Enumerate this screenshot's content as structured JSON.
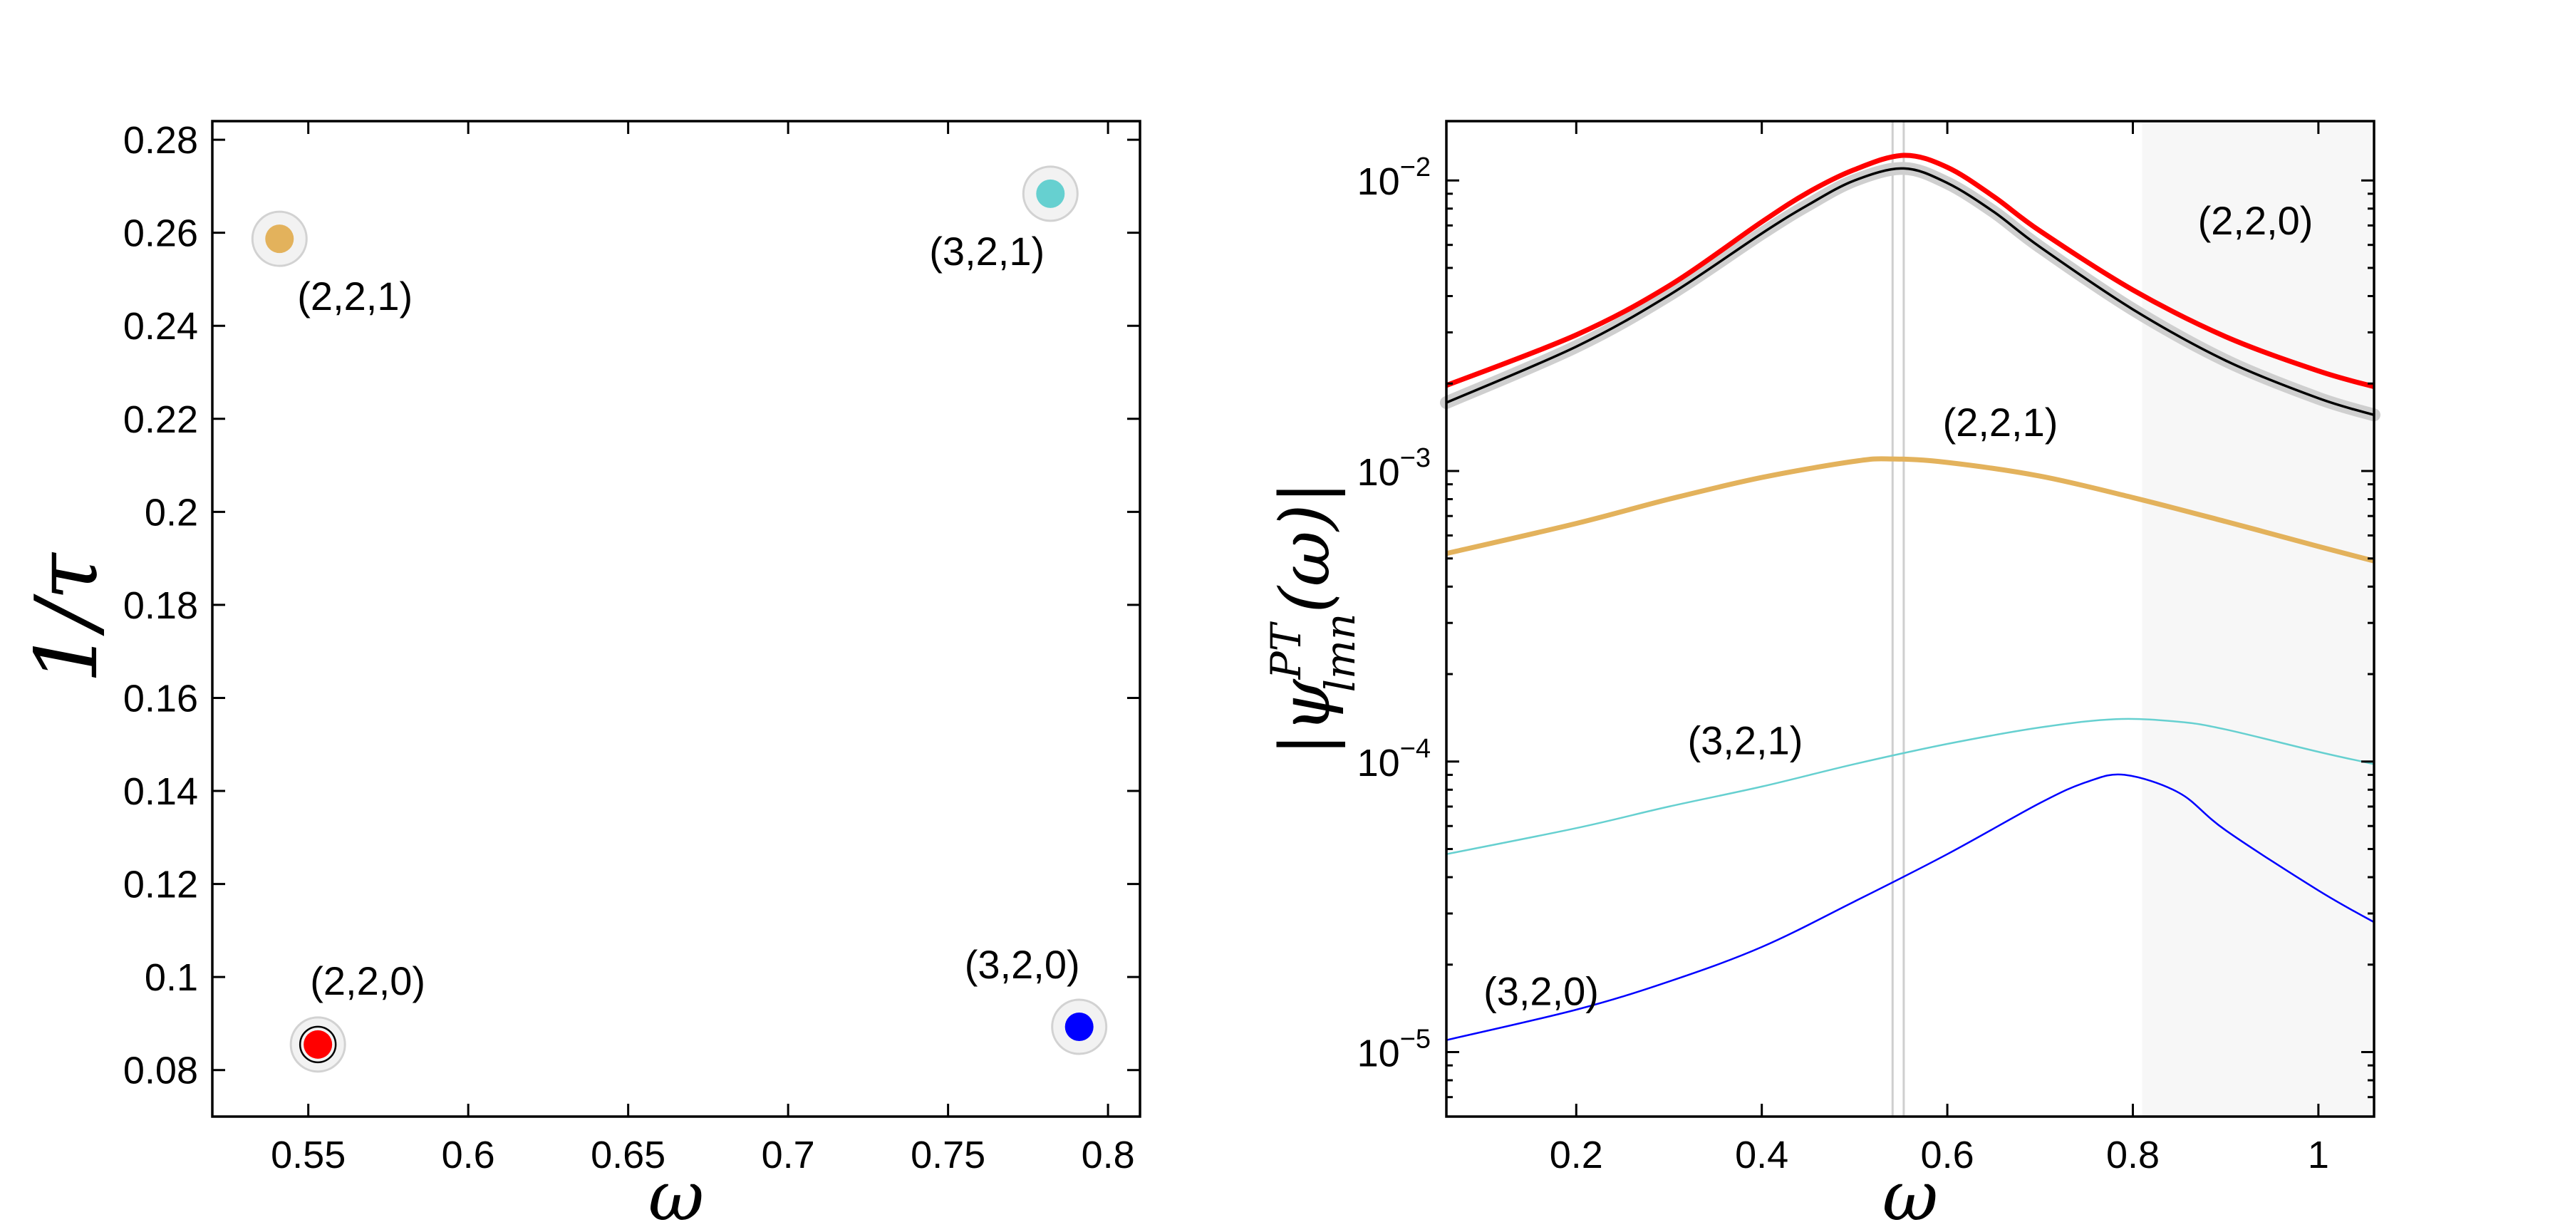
{
  "chart_data": [
    {
      "type": "scatter",
      "xlabel": "ω",
      "ylabel": "1/τ",
      "xlim": [
        0.52,
        0.81
      ],
      "ylim": [
        0.07,
        0.284
      ],
      "xticks": [
        0.55,
        0.6,
        0.65,
        0.7,
        0.75,
        0.8
      ],
      "xtick_labels": [
        "0.55",
        "0.6",
        "0.65",
        "0.7",
        "0.75",
        "0.8"
      ],
      "yticks": [
        0.08,
        0.1,
        0.12,
        0.14,
        0.16,
        0.18,
        0.2,
        0.22,
        0.24,
        0.26,
        0.28
      ],
      "ytick_labels": [
        "0.08",
        "0.1",
        "0.12",
        "0.14",
        "0.16",
        "0.18",
        "0.2",
        "0.22",
        "0.24",
        "0.26",
        "0.28"
      ],
      "grid": false,
      "points": [
        {
          "label": "(2,2,0)",
          "x": 0.553,
          "y": 0.0855,
          "color": "#ff0000",
          "ring": true
        },
        {
          "label": "(2,2,1)",
          "x": 0.541,
          "y": 0.2587,
          "color": "#e3b25c",
          "ring": false
        },
        {
          "label": "(3,2,0)",
          "x": 0.791,
          "y": 0.0893,
          "color": "#0000ff",
          "ring": false
        },
        {
          "label": "(3,2,1)",
          "x": 0.782,
          "y": 0.2684,
          "color": "#66d0d0",
          "ring": false
        }
      ]
    },
    {
      "type": "line",
      "xlabel": "ω",
      "ylabel": "|ψ^{PT}_{lmn}(ω)|",
      "xlim": [
        0.06,
        1.06
      ],
      "yscale": "log",
      "ylim": [
        6e-06,
        0.016
      ],
      "xticks": [
        0.2,
        0.4,
        0.6,
        0.8,
        1
      ],
      "xtick_labels": [
        "0.2",
        "0.4",
        "0.6",
        "0.8",
        "1"
      ],
      "ytick_bases": [
        "10",
        "10",
        "10",
        "10"
      ],
      "ytick_exponents": [
        "−5",
        "−4",
        "−3",
        "−2"
      ],
      "grid": false,
      "shaded_region_x": [
        0.81,
        1.06
      ],
      "vertical_lines_x": [
        0.541,
        0.553
      ],
      "series": [
        {
          "id": "total",
          "color": "#000000",
          "x": [
            0.06,
            0.2,
            0.3,
            0.4,
            0.45,
            0.5,
            0.553,
            0.6,
            0.65,
            0.7,
            0.8,
            0.9,
            1.0,
            1.06
          ],
          "y": [
            0.00172,
            0.00268,
            0.00403,
            0.00657,
            0.00824,
            0.01,
            0.011,
            0.0098,
            0.0078,
            0.0059,
            0.0036,
            0.0024,
            0.00178,
            0.00156
          ]
        },
        {
          "label": "(2,2,0)",
          "color": "#ff0000",
          "x": [
            0.06,
            0.2,
            0.3,
            0.4,
            0.45,
            0.5,
            0.553,
            0.6,
            0.65,
            0.7,
            0.8,
            0.9,
            1.0,
            1.06
          ],
          "y": [
            0.00197,
            0.00294,
            0.00434,
            0.0072,
            0.0091,
            0.0109,
            0.0122,
            0.0111,
            0.0088,
            0.0067,
            0.0042,
            0.0029,
            0.00221,
            0.00195
          ]
        },
        {
          "label": "(2,2,1)",
          "color": "#e3b25c",
          "x": [
            0.06,
            0.2,
            0.3,
            0.4,
            0.5,
            0.541,
            0.6,
            0.7,
            0.8,
            0.9,
            1.0,
            1.06
          ],
          "y": [
            0.00052,
            0.00066,
            0.0008,
            0.00095,
            0.00108,
            0.0011,
            0.00107,
            0.00096,
            0.00081,
            0.00067,
            0.00055,
            0.00049
          ]
        },
        {
          "label": "(3,2,1)",
          "color": "#66d0d0",
          "x": [
            0.06,
            0.2,
            0.3,
            0.4,
            0.5,
            0.6,
            0.7,
            0.782,
            0.85,
            0.9,
            1.0,
            1.06
          ],
          "y": [
            4.8e-05,
            5.9e-05,
            7e-05,
            8.2e-05,
            9.8e-05,
            0.000115,
            0.000131,
            0.00014,
            0.000137,
            0.000129,
            0.000108,
            9.8e-05
          ]
        },
        {
          "label": "(3,2,0)",
          "color": "#0000ff",
          "x": [
            0.06,
            0.2,
            0.3,
            0.4,
            0.5,
            0.6,
            0.7,
            0.75,
            0.791,
            0.85,
            0.9,
            1.0,
            1.06
          ],
          "y": [
            1.1e-05,
            1.4e-05,
            1.75e-05,
            2.3e-05,
            3.3e-05,
            4.8e-05,
            7.2e-05,
            8.5e-05,
            9e-05,
            7.8e-05,
            5.8e-05,
            3.6e-05,
            2.8e-05
          ]
        }
      ]
    }
  ]
}
